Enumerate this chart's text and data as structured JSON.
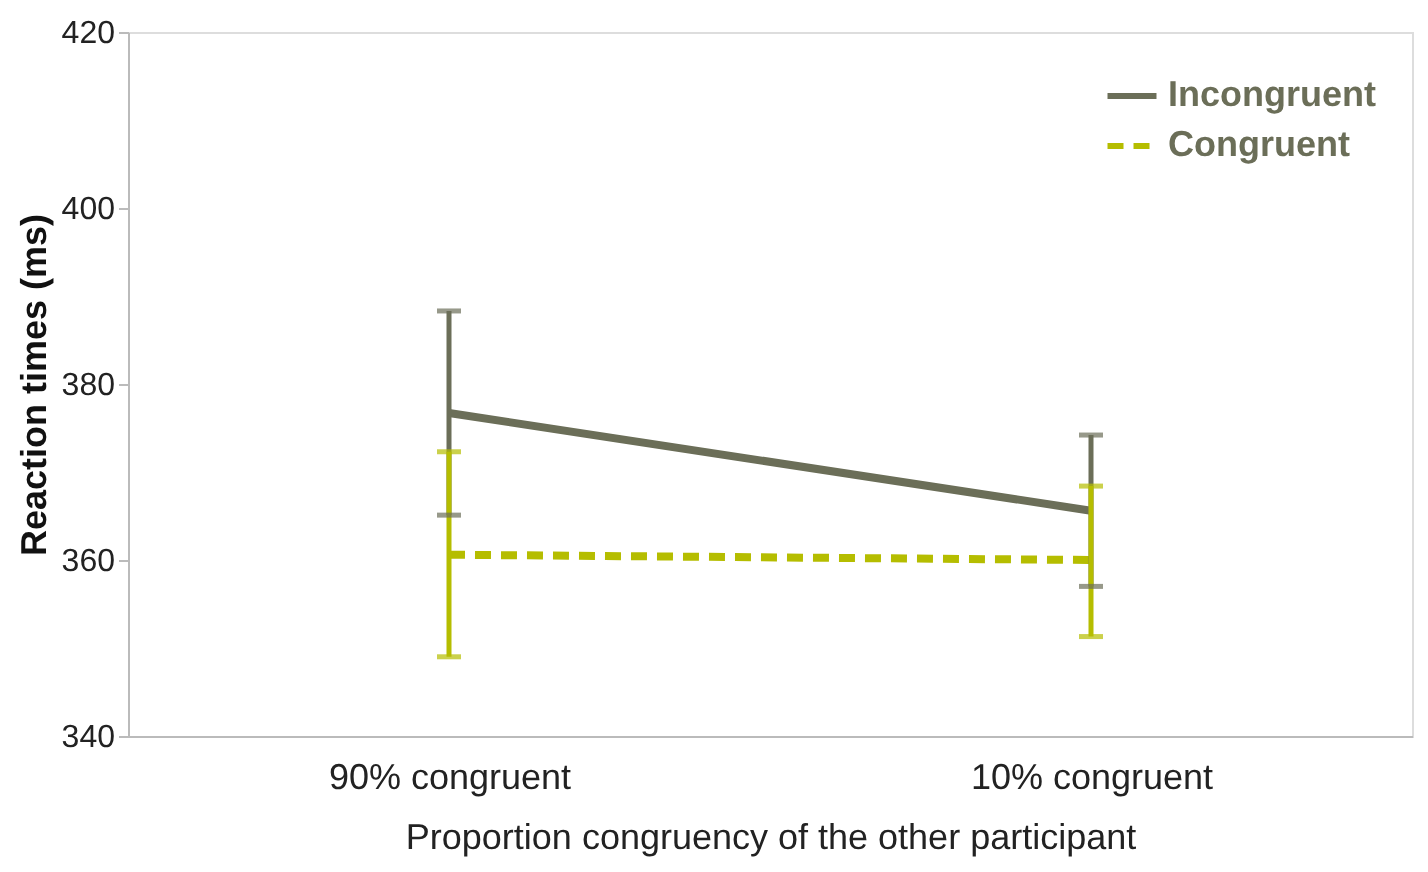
{
  "chart_data": {
    "type": "line",
    "ylabel": "Reaction times (ms)",
    "xlabel": "Proportion congruency of the other participant",
    "categories": [
      "90% congruent",
      "10% congruent"
    ],
    "series": [
      {
        "name": "Incongruent",
        "color": "#6b6e58",
        "line_style": "solid",
        "values": [
          376.7,
          365.6
        ],
        "errors": [
          [
            365.1,
            388.3
          ],
          [
            357.0,
            374.2
          ]
        ]
      },
      {
        "name": "Congruent",
        "color": "#b5bd00",
        "line_style": "dashed",
        "values": [
          360.6,
          360.0
        ],
        "errors": [
          [
            349.0,
            372.3
          ],
          [
            351.3,
            368.4
          ]
        ]
      }
    ],
    "ylim": [
      340,
      420
    ],
    "yticks": [
      340,
      360,
      380,
      400,
      420
    ],
    "grid": false,
    "legend": "top right",
    "marker": "none"
  }
}
